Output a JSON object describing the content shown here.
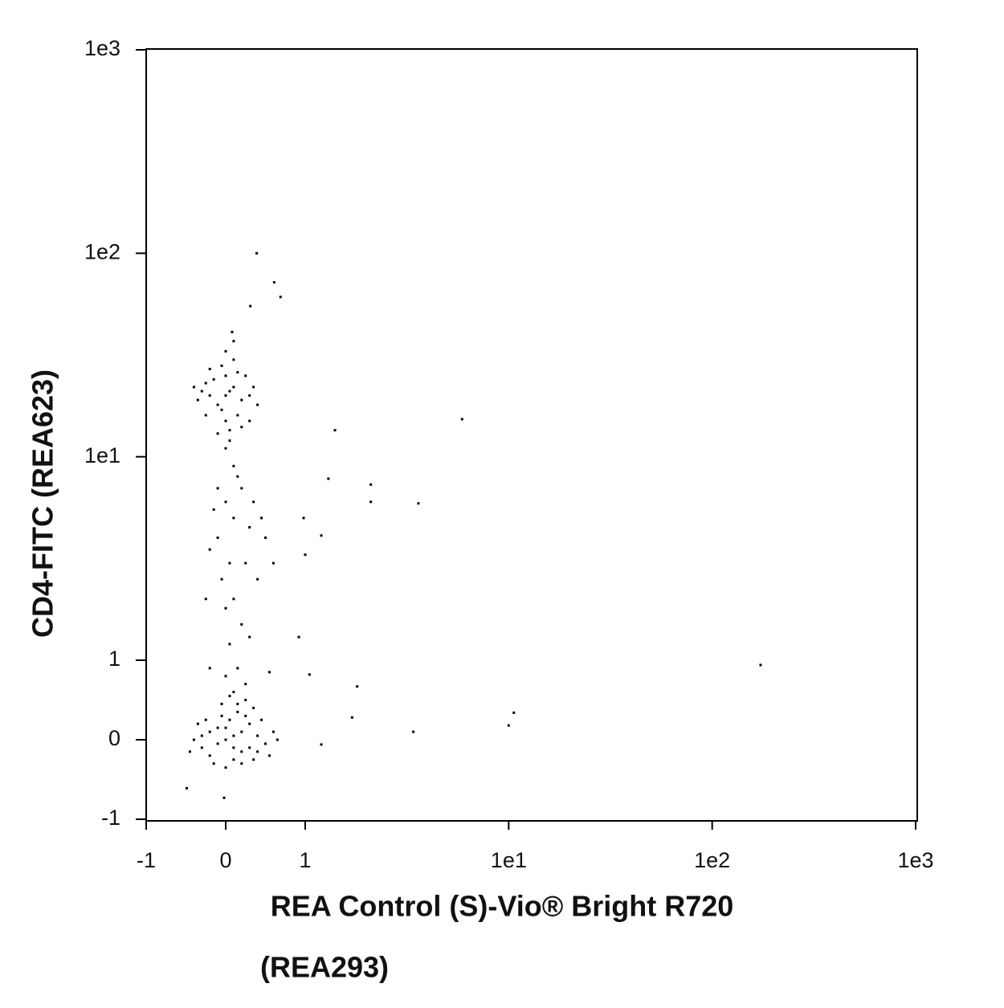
{
  "chart_data": {
    "type": "scatter",
    "xlabel": [
      "REA Control (S)-Vio® Bright R720",
      "(REA293)"
    ],
    "ylabel": "CD4-FITC (REA623)",
    "scale": "biexponential",
    "color": "#000000",
    "xlim": [
      -1,
      1000
    ],
    "ylim": [
      -1,
      1000
    ],
    "xticks": [
      -1,
      0,
      1,
      {
        "value": 10,
        "label": "1e1"
      },
      {
        "value": 100,
        "label": "1e2"
      },
      {
        "value": 1000,
        "label": "1e3"
      }
    ],
    "yticks": [
      -1,
      0,
      1,
      {
        "value": 10,
        "label": "1e1"
      },
      {
        "value": 100,
        "label": "1e2"
      },
      {
        "value": 1000,
        "label": "1e3"
      }
    ],
    "x": [
      0.0,
      0.1,
      -0.1,
      0.2,
      -0.2,
      0.3,
      -0.3,
      0.05,
      0.1,
      -0.05,
      0.4,
      -0.4,
      0.5,
      0.25,
      -0.25,
      0.35,
      -0.15,
      0.15,
      0.0,
      0.6,
      -0.45,
      0.45,
      0.55,
      -0.35,
      0.2,
      -0.1,
      0.3,
      0.0,
      0.1,
      -0.2,
      0.4,
      0.65,
      -0.3,
      0.15,
      0.05,
      0.25,
      0.1,
      -0.05,
      0.35,
      0.2,
      0.0,
      -0.1,
      0.1,
      -0.2,
      0.2,
      -0.3,
      0.3,
      0.0,
      0.0,
      -0.15,
      0.15,
      -0.25,
      0.25,
      -0.05,
      0.05,
      -0.35,
      0.35,
      0.1,
      -0.1,
      0.2,
      -0.2,
      0.0,
      0.05,
      -0.4,
      0.4,
      0.15,
      -0.05,
      0.05,
      -0.25,
      0.3,
      0.1,
      0.08,
      0.0,
      0.0,
      0.1,
      -0.1,
      0.2,
      0.05,
      -0.2,
      0.3,
      0.15,
      -0.05,
      0.1,
      0.25,
      -0.15,
      0.35,
      0.0,
      0.2,
      0.05,
      -0.1,
      0.4,
      0.45,
      -0.25,
      0.3,
      0.1,
      0.5,
      0.15,
      0.0,
      -0.2,
      0.25,
      0.55,
      0.6,
      0.39,
      0.61,
      0.69,
      0.31,
      1.4,
      5.9,
      1.3,
      2.1,
      2.1,
      3.6,
      0.98,
      1.2,
      1.0,
      0.92,
      1.05,
      1.8,
      1.7,
      3.4,
      1.2,
      10.0,
      10.6,
      173,
      -0.49,
      -0.02
    ],
    "values": [
      0.0,
      0.05,
      -0.05,
      0.1,
      0.1,
      -0.1,
      -0.1,
      0.25,
      -0.25,
      0.3,
      0.05,
      0.0,
      -0.05,
      0.3,
      0.25,
      -0.25,
      -0.3,
      0.35,
      -0.35,
      0.1,
      -0.15,
      0.25,
      -0.2,
      0.2,
      -0.15,
      0.15,
      0.2,
      0.15,
      -0.1,
      -0.2,
      -0.15,
      0.0,
      0.05,
      0.45,
      0.55,
      0.5,
      0.6,
      0.45,
      0.4,
      -0.3,
      20,
      18,
      22,
      20,
      19,
      21,
      20,
      25,
      15,
      24,
      16,
      16,
      25,
      28,
      13.5,
      19,
      22,
      30,
      13,
      14,
      27,
      33,
      12,
      22,
      18,
      26,
      17,
      21,
      23,
      15,
      37,
      41,
      11,
      6,
      5,
      4,
      7,
      3,
      3.5,
      4.5,
      8,
      2.5,
      2,
      3,
      5.5,
      6,
      1.8,
      1.5,
      1.2,
      7,
      2.5,
      5,
      2,
      1.3,
      9,
      4,
      0.9,
      0.8,
      0.9,
      0.7,
      0.85,
      3,
      100,
      72,
      61,
      55,
      13.5,
      15.3,
      7.8,
      7.3,
      6,
      5.9,
      5,
      4.1,
      3.3,
      1.3,
      0.82,
      0.67,
      0.28,
      0.1,
      -0.06,
      0.18,
      0.34,
      0.94,
      -0.61,
      -0.73
    ]
  }
}
